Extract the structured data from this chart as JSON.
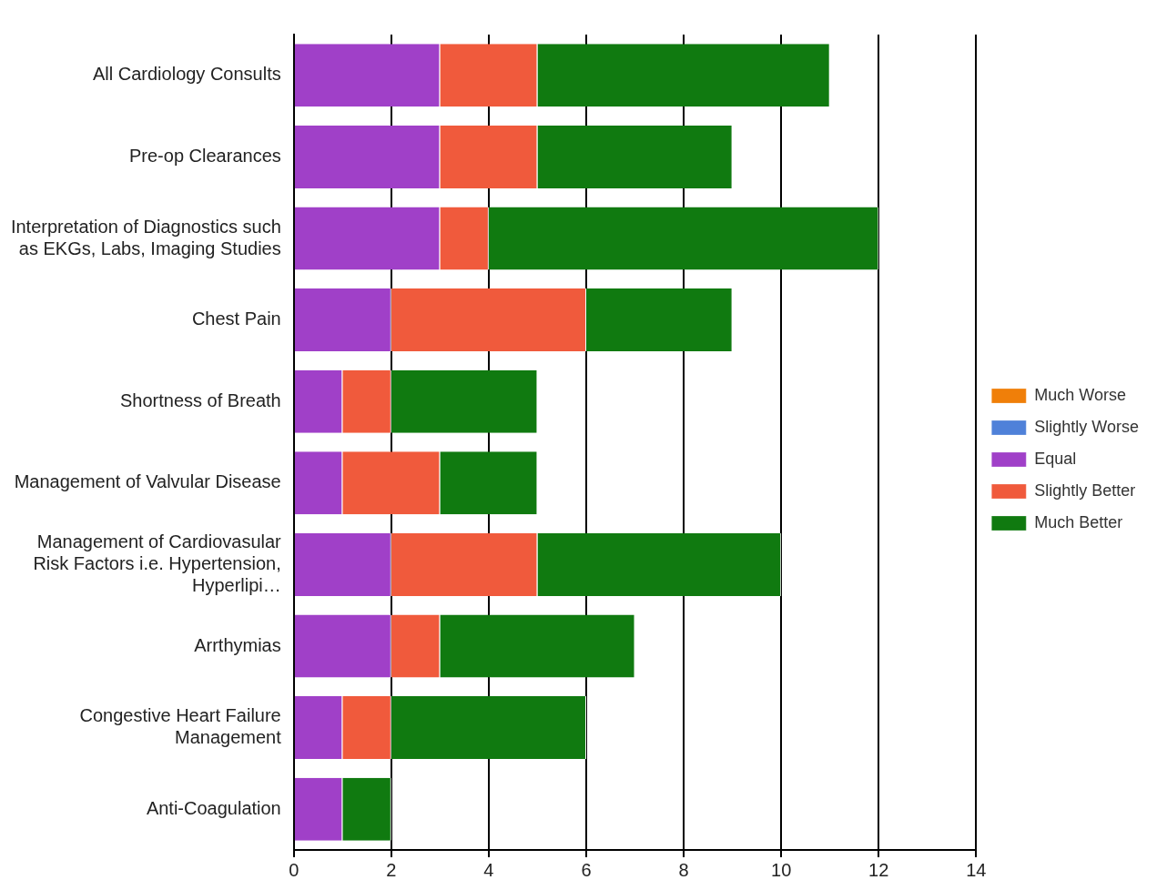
{
  "chart_data": {
    "type": "bar",
    "orientation": "horizontal",
    "stacked": true,
    "categories": [
      "All Cardiology Consults",
      "Pre-op Clearances",
      "Interpretation of Diagnostics such as EKGs, Labs, Imaging Studies",
      "Chest Pain",
      "Shortness of Breath",
      "Management of Valvular Disease",
      "Management of Cardiovasular Risk Factors i.e. Hypertension, Hyperlipi…",
      "Arrthymias",
      "Congestive Heart Failure Management",
      "Anti-Coagulation"
    ],
    "series": [
      {
        "name": "Much Worse",
        "color": "#f07f09",
        "values": [
          0,
          0,
          0,
          0,
          0,
          0,
          0,
          0,
          0,
          0
        ]
      },
      {
        "name": "Slightly Worse",
        "color": "#4f81d9",
        "values": [
          0,
          0,
          0,
          0,
          0,
          0,
          0,
          0,
          0,
          0
        ]
      },
      {
        "name": "Equal",
        "color": "#a040c8",
        "values": [
          3,
          3,
          3,
          2,
          1,
          1,
          2,
          2,
          1,
          1
        ]
      },
      {
        "name": "Slightly Better",
        "color": "#f05a3c",
        "values": [
          2,
          2,
          1,
          4,
          1,
          2,
          3,
          1,
          1,
          0
        ]
      },
      {
        "name": "Much Better",
        "color": "#107a10",
        "values": [
          6,
          4,
          8,
          3,
          3,
          2,
          5,
          4,
          4,
          1
        ]
      }
    ],
    "xlim": [
      0,
      14
    ],
    "xticks": [
      0,
      2,
      4,
      6,
      8,
      10,
      12,
      14
    ],
    "grid": "x",
    "legend": "right"
  }
}
